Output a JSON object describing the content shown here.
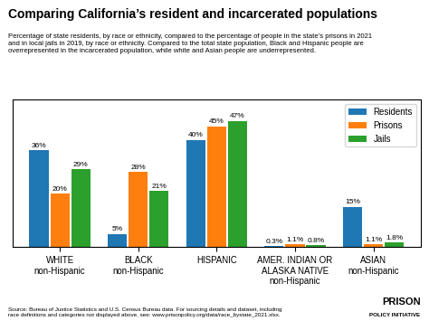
{
  "chart_data": {
    "type": "bar",
    "title": "Comparing California’s resident and incarcerated populations",
    "subtitle": "Percentage of state residents, by race or ethnicity, compared to the percentage of people in the state’s prisons in 2021\nand in local jails in 2019, by race or ethnicity. Compared to the total state population, Black and Hispanic people are\noverrepresented in the incarcerated population, while white and Asian people are underrepresented.",
    "source": "Source: Bureau of Justice Statistics and U.S. Census Bureau data. For sourcing details and dataset, including\nrace definitions and categories not displayed above, see: www.prisonpolicy.org/data/race_bystate_2021.xlsx.",
    "annotations": [
      "PRISON",
      "POLICY INITIATIVE"
    ],
    "categories": [
      "WHITE\nnon-Hispanic",
      "BLACK\nnon-Hispanic",
      "HISPANIC",
      "AMER. INDIAN OR\nALASKA NATIVE\nnon-Hispanic",
      "ASIAN\nnon-Hispanic"
    ],
    "series": [
      {
        "name": "Residents",
        "values": [
          36,
          5,
          40,
          0.3,
          15
        ],
        "value_labels": [
          "36%",
          "5%",
          "40%",
          "0.3%",
          "15%"
        ]
      },
      {
        "name": "Prisons",
        "values": [
          20,
          28,
          45,
          1.1,
          1.1
        ],
        "value_labels": [
          "20%",
          "28%",
          "45%",
          "1.1%",
          "1.1%"
        ]
      },
      {
        "name": "Jails",
        "values": [
          29,
          21,
          47,
          0.8,
          1.8
        ],
        "value_labels": [
          "29%",
          "21%",
          "47%",
          "0.8%",
          "1.8%"
        ]
      }
    ],
    "ylim": [
      0,
      55
    ],
    "data_labels": true,
    "tick_labels": "x",
    "legend": "upper right"
  }
}
